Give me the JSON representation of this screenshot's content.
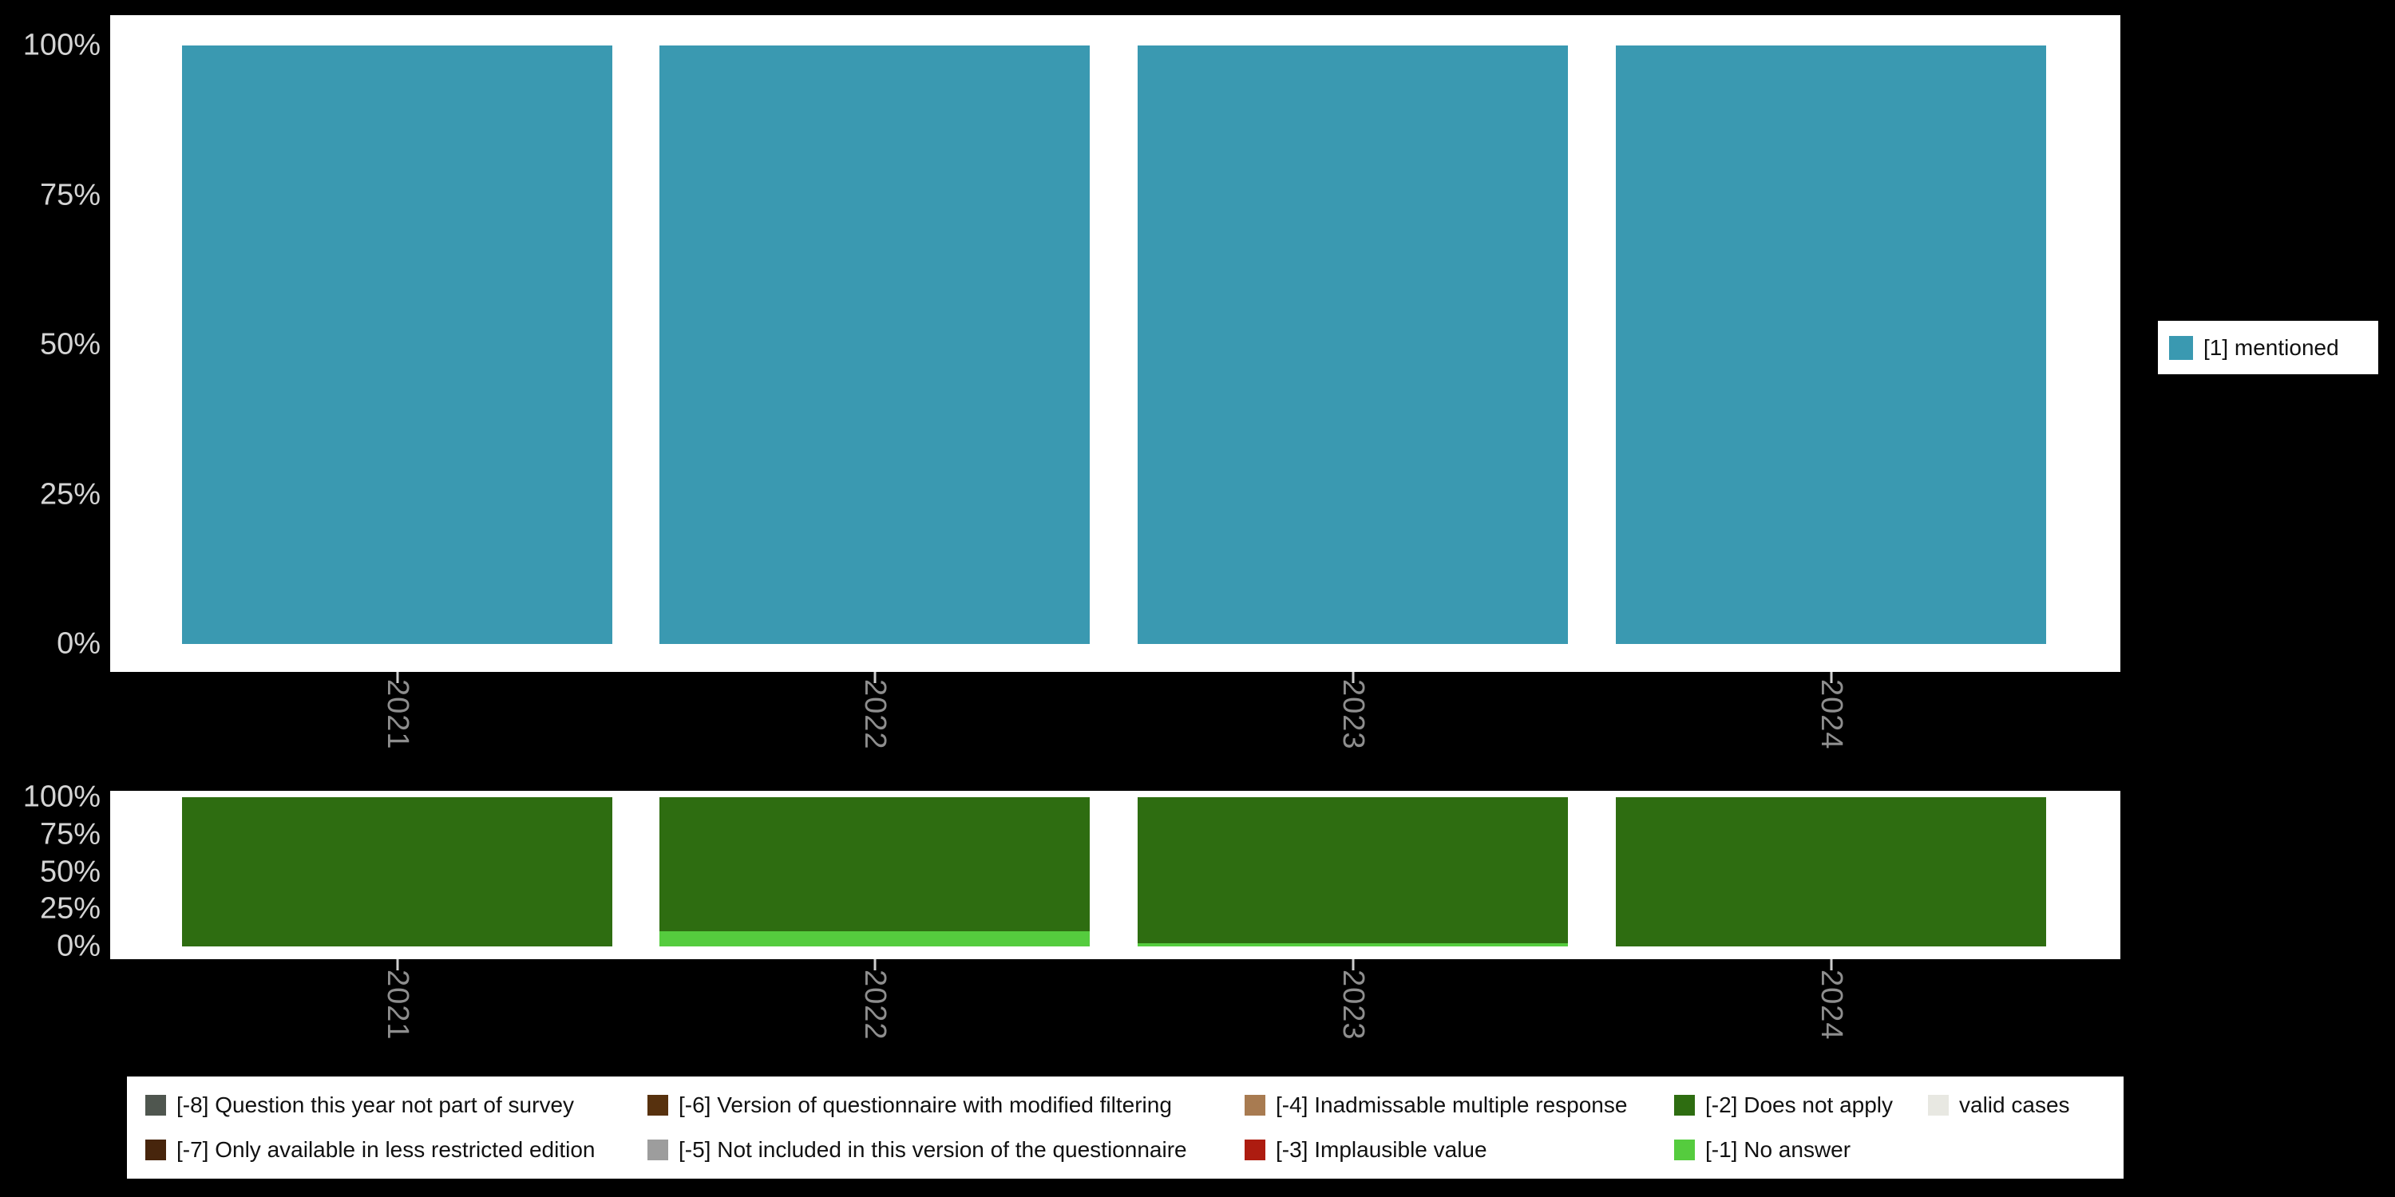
{
  "background": "#000000",
  "panel_bg": "#ffffff",
  "axis_text_color": "#d4d4d4",
  "xtick_text_color": "#8e8e8e",
  "top_legend": {
    "label": "[1] mentioned",
    "color": "#3a99b1"
  },
  "chart_data": [
    {
      "type": "bar",
      "stacked": true,
      "title": "",
      "xlabel": "",
      "ylabel": "",
      "categories": [
        "2021",
        "2022",
        "2023",
        "2024"
      ],
      "series": [
        {
          "name": "[1] mentioned",
          "color": "#3a99b1",
          "values": [
            100,
            100,
            100,
            100
          ]
        }
      ],
      "ylim": [
        0,
        100
      ],
      "yticks": [
        0,
        25,
        50,
        75,
        100
      ],
      "ytick_labels": [
        "0%",
        "25%",
        "50%",
        "75%",
        "100%"
      ],
      "grid": false,
      "legend_position": "right"
    },
    {
      "type": "bar",
      "stacked": true,
      "title": "",
      "xlabel": "",
      "ylabel": "",
      "categories": [
        "2021",
        "2022",
        "2023",
        "2024"
      ],
      "series": [
        {
          "name": "[-2] Does not apply",
          "color": "#2e6d11",
          "values": [
            100,
            90,
            98,
            100
          ]
        },
        {
          "name": "[-1] No answer",
          "color": "#55cc3e",
          "values": [
            0,
            10,
            2,
            0
          ]
        }
      ],
      "ylim": [
        0,
        100
      ],
      "yticks": [
        0,
        25,
        50,
        75,
        100
      ],
      "ytick_labels": [
        "0%",
        "25%",
        "50%",
        "75%",
        "100%"
      ],
      "grid": false,
      "legend_position": "bottom"
    }
  ],
  "missing_legend": {
    "rows": [
      [
        {
          "label": "[-8] Question this year not part of survey",
          "color": "#4f564f"
        },
        {
          "label": "[-6] Version of questionnaire with modified filtering",
          "color": "#57310e"
        },
        {
          "label": "[-4] Inadmissable multiple response",
          "color": "#a87b51"
        },
        {
          "label": "[-2] Does not apply",
          "color": "#2e6d11"
        },
        {
          "label": "valid cases",
          "color": "#e8e8e2"
        }
      ],
      [
        {
          "label": "[-7] Only available in less restricted edition",
          "color": "#47250c"
        },
        {
          "label": "[-5] Not included in this version of the questionnaire",
          "color": "#9d9d9d"
        },
        {
          "label": "[-3] Implausible value",
          "color": "#ad1c10"
        },
        {
          "label": "[-1] No answer",
          "color": "#55cc3e"
        }
      ]
    ]
  }
}
